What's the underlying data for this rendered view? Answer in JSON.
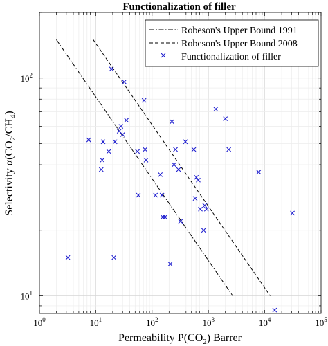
{
  "chart_data": {
    "type": "scatter",
    "title": "Functionalization of filler",
    "xlabel": "Permeability P(CO2) Barrer",
    "ylabel": "Selectivity α(CO2/CH4)",
    "xscale": "log",
    "yscale": "log",
    "xlim": [
      1,
      100000
    ],
    "ylim": [
      8.3,
      200
    ],
    "grid": true,
    "legend_position": "top-right",
    "x_ticks": [
      {
        "value": 1,
        "base": "10",
        "exp": "0"
      },
      {
        "value": 10,
        "base": "10",
        "exp": "1"
      },
      {
        "value": 100,
        "base": "10",
        "exp": "2"
      },
      {
        "value": 1000,
        "base": "10",
        "exp": "3"
      },
      {
        "value": 10000,
        "base": "10",
        "exp": "4"
      },
      {
        "value": 100000,
        "base": "10",
        "exp": "5"
      }
    ],
    "y_ticks": [
      {
        "value": 10,
        "base": "10",
        "exp": "1"
      },
      {
        "value": 100,
        "base": "10",
        "exp": "2"
      }
    ],
    "series": [
      {
        "name": "Robeson's Upper Bound 1991",
        "kind": "line",
        "dash": "dashdot",
        "color": "#000000",
        "points": [
          [
            2,
            150
          ],
          [
            2700,
            10
          ]
        ]
      },
      {
        "name": "Robeson's Upper Bound 2008",
        "kind": "line",
        "dash": "dashed",
        "color": "#000000",
        "points": [
          [
            9,
            150
          ],
          [
            12500,
            10
          ]
        ]
      },
      {
        "name": "Functionalization of filler",
        "kind": "scatter",
        "marker": "x",
        "color": "#1f1fcf",
        "points": [
          [
            3.2,
            15
          ],
          [
            7.5,
            52
          ],
          [
            12.5,
            38
          ],
          [
            13,
            42
          ],
          [
            13.5,
            51
          ],
          [
            17,
            46
          ],
          [
            19,
            110
          ],
          [
            21,
            15
          ],
          [
            22,
            51
          ],
          [
            26,
            57
          ],
          [
            28,
            60
          ],
          [
            30,
            55
          ],
          [
            32,
            96
          ],
          [
            35,
            64
          ],
          [
            55,
            46
          ],
          [
            57,
            29
          ],
          [
            72,
            79
          ],
          [
            75,
            47
          ],
          [
            78,
            42
          ],
          [
            115,
            29
          ],
          [
            140,
            36
          ],
          [
            150,
            29
          ],
          [
            155,
            23
          ],
          [
            170,
            23
          ],
          [
            210,
            14
          ],
          [
            225,
            63
          ],
          [
            245,
            40
          ],
          [
            260,
            47
          ],
          [
            295,
            38
          ],
          [
            320,
            22
          ],
          [
            390,
            51
          ],
          [
            550,
            47
          ],
          [
            580,
            28
          ],
          [
            610,
            35
          ],
          [
            660,
            34
          ],
          [
            720,
            25
          ],
          [
            820,
            20
          ],
          [
            860,
            26
          ],
          [
            920,
            25
          ],
          [
            1350,
            72
          ],
          [
            2000,
            65
          ],
          [
            2300,
            47
          ],
          [
            7800,
            37
          ],
          [
            15000,
            8.6
          ],
          [
            31000,
            24
          ]
        ]
      }
    ]
  }
}
